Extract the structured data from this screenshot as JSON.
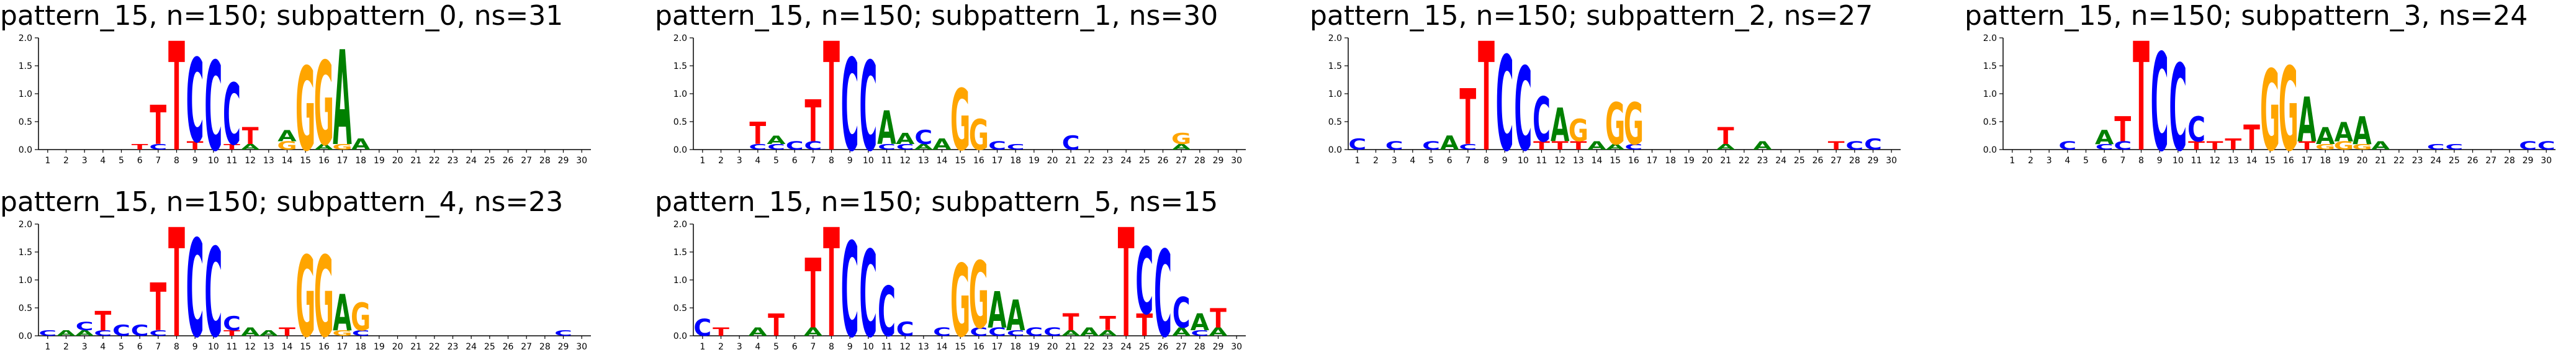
{
  "colors": {
    "A": "#008000",
    "C": "#0000ff",
    "G": "#ffa500",
    "T": "#ff0000"
  },
  "chart_data": [
    {
      "type": "sequence-logo",
      "title": [
        "pattern_15, n=150;",
        "subpattern_0, ns=31"
      ],
      "ylim": [
        0,
        2
      ],
      "yticks": [
        "0.0",
        "0.5",
        "1.0",
        "1.5",
        "2.0"
      ],
      "positions": [
        1,
        2,
        3,
        4,
        5,
        6,
        7,
        8,
        9,
        10,
        11,
        12,
        13,
        14,
        15,
        16,
        17,
        18,
        19,
        20,
        21,
        22,
        23,
        24,
        25,
        26,
        27,
        28,
        29,
        30
      ],
      "letters": {
        "6": [
          [
            "T",
            0.1
          ]
        ],
        "7": [
          [
            "T",
            0.7
          ],
          [
            "C",
            0.1
          ]
        ],
        "8": [
          [
            "T",
            1.95
          ]
        ],
        "9": [
          [
            "C",
            1.5
          ],
          [
            "T",
            0.15
          ]
        ],
        "10": [
          [
            "C",
            1.6
          ]
        ],
        "11": [
          [
            "C",
            1.1
          ],
          [
            "T",
            0.1
          ]
        ],
        "12": [
          [
            "T",
            0.3
          ],
          [
            "A",
            0.1
          ]
        ],
        "14": [
          [
            "A",
            0.2
          ],
          [
            "G",
            0.15
          ]
        ],
        "15": [
          [
            "G",
            1.5
          ]
        ],
        "16": [
          [
            "G",
            1.5
          ],
          [
            "A",
            0.1
          ]
        ],
        "17": [
          [
            "A",
            1.7
          ],
          [
            "G",
            0.1
          ]
        ],
        "18": [
          [
            "A",
            0.2
          ]
        ]
      }
    },
    {
      "type": "sequence-logo",
      "title": [
        "pattern_15, n=150;",
        "subpattern_1, ns=30"
      ],
      "ylim": [
        0,
        2
      ],
      "yticks": [
        "0.0",
        "0.5",
        "1.0",
        "1.5",
        "2.0"
      ],
      "positions": [
        1,
        2,
        3,
        4,
        5,
        6,
        7,
        8,
        9,
        10,
        11,
        12,
        13,
        14,
        15,
        16,
        17,
        18,
        19,
        20,
        21,
        22,
        23,
        24,
        25,
        26,
        27,
        28,
        29,
        30
      ],
      "letters": {
        "4": [
          [
            "T",
            0.4
          ],
          [
            "C",
            0.1
          ]
        ],
        "5": [
          [
            "A",
            0.15
          ],
          [
            "C",
            0.1
          ]
        ],
        "6": [
          [
            "C",
            0.15
          ]
        ],
        "7": [
          [
            "T",
            0.75
          ],
          [
            "C",
            0.15
          ]
        ],
        "8": [
          [
            "T",
            1.95
          ]
        ],
        "9": [
          [
            "C",
            1.65
          ]
        ],
        "10": [
          [
            "C",
            1.6
          ]
        ],
        "11": [
          [
            "A",
            0.6
          ],
          [
            "C",
            0.1
          ]
        ],
        "12": [
          [
            "A",
            0.2
          ],
          [
            "C",
            0.1
          ]
        ],
        "13": [
          [
            "C",
            0.25
          ],
          [
            "A",
            0.1
          ]
        ],
        "14": [
          [
            "A",
            0.2
          ]
        ],
        "15": [
          [
            "G",
            1.1
          ]
        ],
        "16": [
          [
            "G",
            0.55
          ]
        ],
        "17": [
          [
            "C",
            0.15
          ]
        ],
        "18": [
          [
            "C",
            0.1
          ]
        ],
        "21": [
          [
            "C",
            0.25
          ]
        ],
        "27": [
          [
            "G",
            0.2
          ],
          [
            "A",
            0.1
          ]
        ]
      }
    },
    {
      "type": "sequence-logo",
      "title": [
        "pattern_15, n=150;",
        "subpattern_2, ns=27"
      ],
      "ylim": [
        0,
        2
      ],
      "yticks": [
        "0.0",
        "0.5",
        "1.0",
        "1.5",
        "2.0"
      ],
      "positions": [
        1,
        2,
        3,
        4,
        5,
        6,
        7,
        8,
        9,
        10,
        11,
        12,
        13,
        14,
        15,
        16,
        17,
        18,
        19,
        20,
        21,
        22,
        23,
        24,
        25,
        26,
        27,
        28,
        29,
        30
      ],
      "letters": {
        "1": [
          [
            "C",
            0.2
          ]
        ],
        "3": [
          [
            "C",
            0.15
          ]
        ],
        "5": [
          [
            "C",
            0.15
          ]
        ],
        "6": [
          [
            "A",
            0.25
          ]
        ],
        "7": [
          [
            "T",
            1.0
          ],
          [
            "C",
            0.1
          ]
        ],
        "8": [
          [
            "T",
            1.95
          ]
        ],
        "9": [
          [
            "C",
            1.7
          ]
        ],
        "10": [
          [
            "C",
            1.5
          ]
        ],
        "11": [
          [
            "C",
            0.8
          ],
          [
            "T",
            0.15
          ]
        ],
        "12": [
          [
            "A",
            0.6
          ],
          [
            "T",
            0.15
          ]
        ],
        "13": [
          [
            "G",
            0.4
          ],
          [
            "T",
            0.15
          ]
        ],
        "14": [
          [
            "A",
            0.15
          ]
        ],
        "15": [
          [
            "G",
            0.75
          ],
          [
            "A",
            0.1
          ]
        ],
        "16": [
          [
            "G",
            0.75
          ],
          [
            "C",
            0.1
          ]
        ],
        "21": [
          [
            "T",
            0.3
          ],
          [
            "A",
            0.1
          ]
        ],
        "23": [
          [
            "A",
            0.15
          ]
        ],
        "27": [
          [
            "T",
            0.15
          ]
        ],
        "28": [
          [
            "C",
            0.15
          ]
        ],
        "29": [
          [
            "C",
            0.2
          ]
        ]
      }
    },
    {
      "type": "sequence-logo",
      "title": [
        "pattern_15, n=150;",
        "subpattern_3, ns=24"
      ],
      "ylim": [
        0,
        2
      ],
      "yticks": [
        "0.0",
        "0.5",
        "1.0",
        "1.5",
        "2.0"
      ],
      "positions": [
        1,
        2,
        3,
        4,
        5,
        6,
        7,
        8,
        9,
        10,
        11,
        12,
        13,
        14,
        15,
        16,
        17,
        18,
        19,
        20,
        21,
        22,
        23,
        24,
        25,
        26,
        27,
        28,
        29,
        30
      ],
      "letters": {
        "4": [
          [
            "C",
            0.15
          ]
        ],
        "6": [
          [
            "A",
            0.25
          ],
          [
            "C",
            0.1
          ]
        ],
        "7": [
          [
            "T",
            0.45
          ],
          [
            "C",
            0.15
          ]
        ],
        "8": [
          [
            "T",
            1.95
          ]
        ],
        "9": [
          [
            "C",
            1.75
          ]
        ],
        "10": [
          [
            "C",
            1.55
          ]
        ],
        "11": [
          [
            "C",
            0.45
          ],
          [
            "T",
            0.15
          ]
        ],
        "12": [
          [
            "T",
            0.15
          ]
        ],
        "13": [
          [
            "T",
            0.2
          ]
        ],
        "14": [
          [
            "T",
            0.45
          ]
        ],
        "15": [
          [
            "G",
            1.45
          ]
        ],
        "16": [
          [
            "G",
            1.5
          ]
        ],
        "17": [
          [
            "A",
            0.8
          ],
          [
            "T",
            0.15
          ]
        ],
        "18": [
          [
            "A",
            0.3
          ],
          [
            "G",
            0.1
          ]
        ],
        "19": [
          [
            "A",
            0.35
          ],
          [
            "G",
            0.15
          ]
        ],
        "20": [
          [
            "A",
            0.5
          ],
          [
            "G",
            0.1
          ]
        ],
        "21": [
          [
            "A",
            0.15
          ]
        ],
        "24": [
          [
            "C",
            0.1
          ]
        ],
        "25": [
          [
            "C",
            0.1
          ]
        ],
        "29": [
          [
            "C",
            0.15
          ]
        ],
        "30": [
          [
            "C",
            0.15
          ]
        ]
      }
    },
    {
      "type": "sequence-logo",
      "title": [
        "pattern_15, n=150;",
        "subpattern_4, ns=23"
      ],
      "ylim": [
        0,
        2
      ],
      "yticks": [
        "0.0",
        "0.5",
        "1.0",
        "1.5",
        "2.0"
      ],
      "positions": [
        1,
        2,
        3,
        4,
        5,
        6,
        7,
        8,
        9,
        10,
        11,
        12,
        13,
        14,
        15,
        16,
        17,
        18,
        19,
        20,
        21,
        22,
        23,
        24,
        25,
        26,
        27,
        28,
        29,
        30
      ],
      "letters": {
        "1": [
          [
            "C",
            0.1
          ]
        ],
        "2": [
          [
            "A",
            0.1
          ]
        ],
        "3": [
          [
            "C",
            0.15
          ],
          [
            "A",
            0.1
          ]
        ],
        "4": [
          [
            "T",
            0.35
          ],
          [
            "C",
            0.1
          ]
        ],
        "5": [
          [
            "C",
            0.2
          ]
        ],
        "6": [
          [
            "C",
            0.2
          ]
        ],
        "7": [
          [
            "T",
            0.85
          ],
          [
            "C",
            0.1
          ]
        ],
        "8": [
          [
            "T",
            1.95
          ]
        ],
        "9": [
          [
            "C",
            1.75
          ]
        ],
        "10": [
          [
            "C",
            1.6
          ]
        ],
        "11": [
          [
            "C",
            0.25
          ],
          [
            "T",
            0.1
          ]
        ],
        "12": [
          [
            "A",
            0.15
          ]
        ],
        "13": [
          [
            "A",
            0.1
          ]
        ],
        "14": [
          [
            "T",
            0.15
          ]
        ],
        "15": [
          [
            "G",
            1.45
          ]
        ],
        "16": [
          [
            "G",
            1.45
          ]
        ],
        "17": [
          [
            "A",
            0.65
          ],
          [
            "G",
            0.1
          ]
        ],
        "18": [
          [
            "G",
            0.5
          ],
          [
            "C",
            0.1
          ]
        ],
        "29": [
          [
            "C",
            0.1
          ]
        ]
      }
    },
    {
      "type": "sequence-logo",
      "title": [
        "pattern_15, n=150;",
        "subpattern_5, ns=15"
      ],
      "ylim": [
        0,
        2
      ],
      "yticks": [
        "0.0",
        "0.5",
        "1.0",
        "1.5",
        "2.0"
      ],
      "positions": [
        1,
        2,
        3,
        4,
        5,
        6,
        7,
        8,
        9,
        10,
        11,
        12,
        13,
        14,
        15,
        16,
        17,
        18,
        19,
        20,
        21,
        22,
        23,
        24,
        25,
        26,
        27,
        28,
        29,
        30
      ],
      "letters": {
        "1": [
          [
            "C",
            0.3
          ]
        ],
        "2": [
          [
            "T",
            0.15
          ]
        ],
        "4": [
          [
            "A",
            0.15
          ]
        ],
        "5": [
          [
            "T",
            0.4
          ]
        ],
        "7": [
          [
            "T",
            1.25
          ],
          [
            "A",
            0.15
          ]
        ],
        "8": [
          [
            "T",
            1.95
          ]
        ],
        "9": [
          [
            "C",
            1.7
          ]
        ],
        "10": [
          [
            "C",
            1.55
          ]
        ],
        "11": [
          [
            "C",
            0.9
          ]
        ],
        "12": [
          [
            "C",
            0.25
          ]
        ],
        "14": [
          [
            "C",
            0.15
          ]
        ],
        "15": [
          [
            "G",
            1.3
          ]
        ],
        "16": [
          [
            "G",
            1.2
          ],
          [
            "C",
            0.15
          ]
        ],
        "17": [
          [
            "A",
            0.65
          ],
          [
            "C",
            0.15
          ]
        ],
        "18": [
          [
            "A",
            0.55
          ],
          [
            "C",
            0.1
          ]
        ],
        "19": [
          [
            "C",
            0.15
          ]
        ],
        "20": [
          [
            "C",
            0.15
          ]
        ],
        "21": [
          [
            "T",
            0.3
          ],
          [
            "A",
            0.1
          ]
        ],
        "22": [
          [
            "A",
            0.15
          ]
        ],
        "23": [
          [
            "T",
            0.25
          ],
          [
            "A",
            0.1
          ]
        ],
        "24": [
          [
            "T",
            1.95
          ]
        ],
        "25": [
          [
            "T",
            0.4
          ],
          [
            "C",
            1.2
          ]
        ],
        "26": [
          [
            "C",
            1.55
          ]
        ],
        "27": [
          [
            "C",
            0.55
          ],
          [
            "A",
            0.15
          ]
        ],
        "28": [
          [
            "A",
            0.3
          ],
          [
            "C",
            0.1
          ]
        ],
        "29": [
          [
            "T",
            0.35
          ],
          [
            "A",
            0.15
          ]
        ]
      }
    }
  ]
}
